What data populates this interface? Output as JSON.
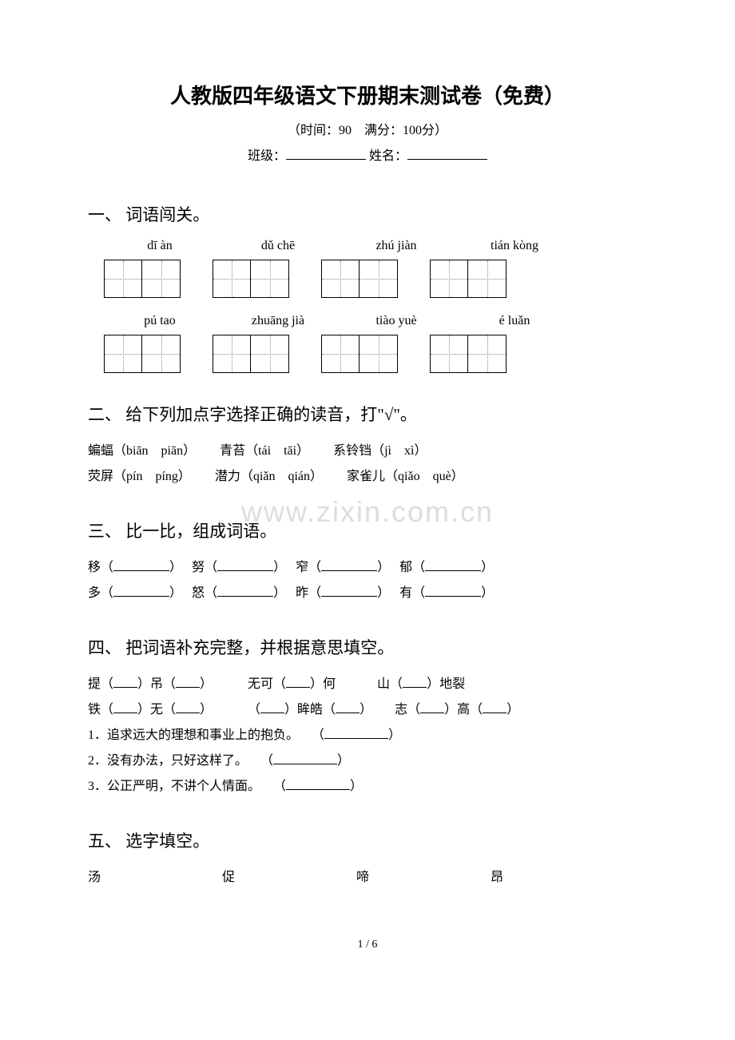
{
  "header": {
    "title": "人教版四年级语文下册期末测试卷（免费）",
    "subtitle": "（时间：90　满分：100分）",
    "class_label": "班级：",
    "name_label": "姓名："
  },
  "watermark": "www.zixin.com.cn",
  "section1": {
    "heading": "一、 词语闯关。",
    "pinyin_row1": [
      "dī àn",
      "dǔ chē",
      "zhú jiàn",
      "tián kòng"
    ],
    "pinyin_row2": [
      "pú tao",
      "zhuāng jià",
      "tiào yuè",
      "é luǎn"
    ]
  },
  "section2": {
    "heading": "二、 给下列加点字选择正确的读音，打\"√\"。",
    "row1": [
      "蝙蝠（biān　piān）",
      "青苔（tái　tāi）",
      "系铃铛（jì　xì）"
    ],
    "row2": [
      "荧屏（pín　píng）",
      "潜力（qiǎn　qián）",
      "家雀儿（qiǎo　què）"
    ]
  },
  "section3": {
    "heading": "三、 比一比，组成词语。",
    "row1": [
      "移",
      "努",
      "窄",
      "郁"
    ],
    "row2": [
      "多",
      "怒",
      "昨",
      "有"
    ]
  },
  "section4": {
    "heading": "四、 把词语补充完整，并根据意思填空。",
    "line1": [
      "提（",
      "）吊（",
      "）",
      "无可（",
      "）何",
      "山（",
      "）地裂"
    ],
    "line2": [
      "铁（",
      "）无（",
      "）",
      "（",
      "）眸皓（",
      "）",
      "志（",
      "）高（",
      "）"
    ],
    "items": [
      "1．追求远大的理想和事业上的抱负。",
      "2．没有办法，只好这样了。",
      "3．公正严明，不讲个人情面。"
    ]
  },
  "section5": {
    "heading": "五、 选字填空。",
    "chars": "汤　　促　　啼　　昂"
  },
  "footer": "1 / 6"
}
